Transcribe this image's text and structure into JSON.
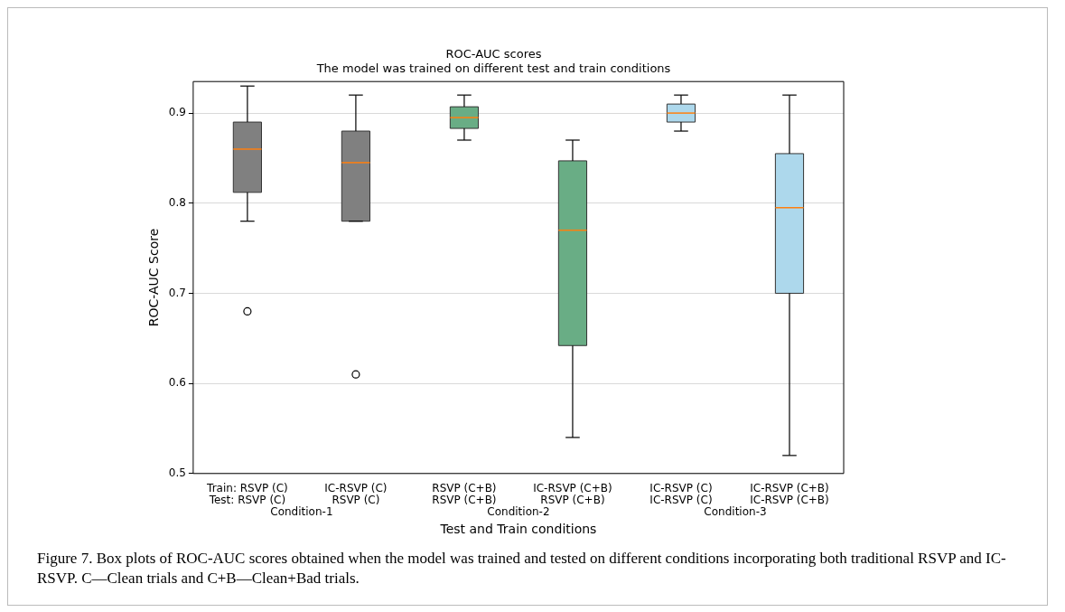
{
  "chart_data": {
    "type": "box",
    "title": "ROC-AUC scores",
    "subtitle": "The model was trained on different test and train conditions",
    "xlabel": "Test and Train conditions",
    "ylabel": "ROC-AUC Score",
    "categories": [
      "Train: RSVP (C)\nTest: RSVP (C)",
      "IC-RSVP (C)\nRSVP (C)",
      "RSVP (C+B)\nRSVP (C+B)",
      "IC-RSVP (C+B)\nRSVP (C+B)",
      "IC-RSVP (C)\nIC-RSVP (C)",
      "IC-RSVP (C+B)\nIC-RSVP (C+B)"
    ],
    "boxes": [
      {
        "low": 0.78,
        "q1": 0.812,
        "median": 0.86,
        "q3": 0.89,
        "high": 0.93,
        "outliers": [
          0.68
        ]
      },
      {
        "low": 0.78,
        "q1": 0.78,
        "median": 0.845,
        "q3": 0.88,
        "high": 0.92,
        "outliers": [
          0.61
        ]
      },
      {
        "low": 0.87,
        "q1": 0.883,
        "median": 0.895,
        "q3": 0.907,
        "high": 0.92
      },
      {
        "low": 0.54,
        "q1": 0.642,
        "median": 0.77,
        "q3": 0.847,
        "high": 0.87
      },
      {
        "low": 0.88,
        "q1": 0.89,
        "median": 0.9,
        "q3": 0.91,
        "high": 0.92
      },
      {
        "low": 0.52,
        "q1": 0.7,
        "median": 0.795,
        "q3": 0.855,
        "high": 0.92
      }
    ],
    "colors": [
      "#808080",
      "#808080",
      "#69ad85",
      "#69ad85",
      "#add8ec",
      "#add8ec"
    ],
    "ylim": [
      0.5,
      0.935
    ],
    "yticks": [
      0.5,
      0.6,
      0.7,
      0.8,
      0.9
    ],
    "grid": "y",
    "annotations": [
      "Condition-1",
      "Condition-2",
      "Condition-3",
      "Figure 7. Box plots of ROC-AUC scores obtained when the model was trained and tested on different conditions incorporating both traditional RSVP and IC-RSVP. C—Clean trials and C+B—Clean+Bad trials."
    ]
  }
}
